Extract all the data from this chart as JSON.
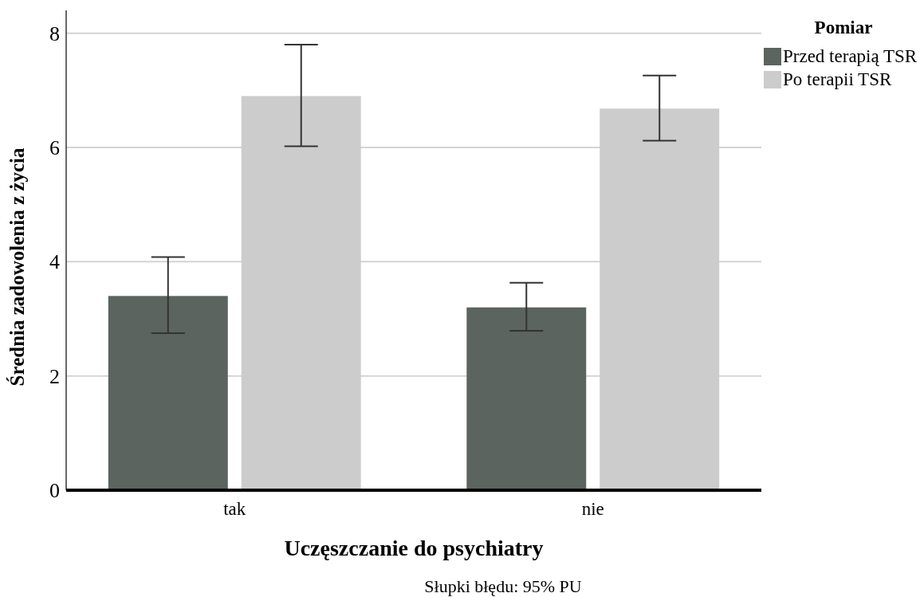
{
  "chart_data": {
    "type": "bar",
    "xlabel": "Uczęszczanie do psychiatry",
    "ylabel": "Średnia zadowolenia z życia",
    "legend_title": "Pomiar",
    "categories": [
      "tak",
      "nie"
    ],
    "series": [
      {
        "name": "Przed terapią TSR",
        "color": "#5b645e",
        "values": [
          3.4,
          3.2
        ],
        "errors": [
          [
            2.75,
            4.08
          ],
          [
            2.79,
            3.63
          ]
        ]
      },
      {
        "name": "Po terapii TSR",
        "color": "#cccccc",
        "values": [
          6.9,
          6.68
        ],
        "errors": [
          [
            6.02,
            7.8
          ],
          [
            6.12,
            7.26
          ]
        ]
      }
    ],
    "ylim": [
      0,
      8.4
    ],
    "yticks": [
      0,
      2,
      4,
      6,
      8
    ],
    "grid": "y",
    "legend": "top right",
    "annotations": [
      "Słupki błędu: 95% PU"
    ]
  }
}
